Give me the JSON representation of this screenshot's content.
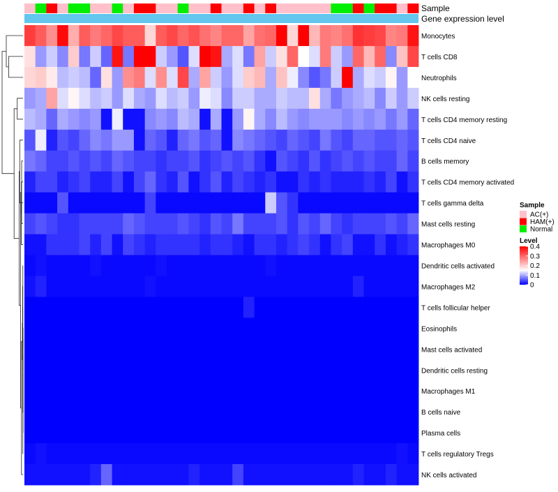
{
  "chart_data": {
    "type": "heatmap",
    "annotation_labels": {
      "sample": "Sample",
      "gene_expression": "Gene expression level"
    },
    "rows": [
      "Monocytes",
      "T cells CD8",
      "Neutrophils",
      "NK cells resting",
      "T cells CD4 memory resting",
      "T cells CD4 naive",
      "B cells memory",
      "T cells CD4 memory activated",
      "T cells gamma delta",
      "Mast cells resting",
      "Macrophages M0",
      "Dendritic cells activated",
      "Macrophages M2",
      "T cells follicular helper",
      "Eosinophils",
      "Mast cells activated",
      "Dendritic cells resting",
      "Macrophages M1",
      "B cells naive",
      "Plasma cells",
      "T cells regulatory  Tregs",
      "NK cells activated"
    ],
    "sample_groups": [
      "AC(+)",
      "Normal",
      "HAM(+)",
      "AC(+)",
      "Normal",
      "Normal",
      "AC(+)",
      "AC(+)",
      "Normal",
      "AC(+)",
      "HAM(+)",
      "HAM(+)",
      "AC(+)",
      "AC(+)",
      "Normal",
      "AC(+)",
      "AC(+)",
      "HAM(+)",
      "AC(+)",
      "AC(+)",
      "HAM(+)",
      "AC(+)",
      "HAM(+)",
      "AC(+)",
      "AC(+)",
      "AC(+)",
      "AC(+)",
      "AC(+)",
      "Normal",
      "Normal",
      "HAM(+)",
      "Normal",
      "HAM(+)",
      "HAM(+)",
      "AC(+)",
      "HAM(+)"
    ],
    "legend": {
      "sample_title": "Sample",
      "sample_entries": [
        {
          "label": "AC(+)",
          "color": "#ffc0cb"
        },
        {
          "label": "HAM(+)",
          "color": "#ff0000"
        },
        {
          "label": "Normal",
          "color": "#00ee00"
        }
      ],
      "level_title": "Level",
      "level_ticks": [
        "0.4",
        "0.3",
        "0.2",
        "0.1",
        "0"
      ],
      "level_range": [
        0,
        0.4
      ]
    },
    "color_scale": {
      "low": "#0000ff",
      "mid": "#ffffff",
      "high": "#ff0000",
      "mid_value": 0.15
    },
    "row_base_values": [
      0.31,
      0.15,
      0.2,
      0.12,
      0.08,
      0.05,
      0.04,
      0.025,
      0.005,
      0.04,
      0.025,
      0.007,
      0.004,
      0.001,
      0,
      0,
      0,
      0,
      0,
      0,
      0.003,
      0.01
    ],
    "values": [
      [
        0.34,
        0.31,
        0.26,
        0.39,
        0.23,
        0.31,
        0.28,
        0.3,
        0.33,
        0.31,
        0.31,
        0.19,
        0.31,
        0.33,
        0.3,
        0.32,
        0.29,
        0.27,
        0.3,
        0.3,
        0.24,
        0.29,
        0.3,
        0.4,
        0.19,
        0.4,
        0.22,
        0.28,
        0.27,
        0.29,
        0.35,
        0.34,
        0.33,
        0.27,
        0.28,
        0.38
      ],
      [
        0.18,
        0.09,
        0.12,
        0.08,
        0.2,
        0.07,
        0.12,
        0.06,
        0.38,
        0.07,
        0.4,
        0.4,
        0.12,
        0.09,
        0.05,
        0.13,
        0.4,
        0.38,
        0.1,
        0.13,
        0.07,
        0.24,
        0.12,
        0.18,
        0.3,
        0.15,
        0.13,
        0.28,
        0.12,
        0.09,
        0.3,
        0.22,
        0.3,
        0.08,
        0.21,
        0.33
      ],
      [
        0.19,
        0.2,
        0.17,
        0.11,
        0.12,
        0.11,
        0.06,
        0.18,
        0.09,
        0.26,
        0.28,
        0.13,
        0.26,
        0.13,
        0.33,
        0.1,
        0.24,
        0.12,
        0.09,
        0.13,
        0.2,
        0.22,
        0.1,
        0.21,
        0.14,
        0.08,
        0.05,
        0.07,
        0.12,
        0.4,
        0.1,
        0.13,
        0.12,
        0.16,
        0.09,
        0.15
      ],
      [
        0.09,
        0.1,
        0.24,
        0.13,
        0.16,
        0.13,
        0.11,
        0.12,
        0.09,
        0.13,
        0.1,
        0.09,
        0.13,
        0.11,
        0.12,
        0.09,
        0.14,
        0.13,
        0.08,
        0.12,
        0.12,
        0.1,
        0.1,
        0.12,
        0.11,
        0.11,
        0.18,
        0.1,
        0.07,
        0.09,
        0.1,
        0.11,
        0.08,
        0.12,
        0.09,
        0.12
      ],
      [
        0.11,
        0.1,
        0.06,
        0.1,
        0.09,
        0.08,
        0.09,
        0.01,
        0.14,
        0.01,
        0.01,
        0.08,
        0.09,
        0.08,
        0.11,
        0.1,
        0.01,
        0.1,
        0.01,
        0.09,
        0.16,
        0.1,
        0.08,
        0.11,
        0.09,
        0.08,
        0.09,
        0.09,
        0.09,
        0.08,
        0.09,
        0.08,
        0.09,
        0.07,
        0.09,
        0.06
      ],
      [
        0.05,
        0.14,
        0.02,
        0.05,
        0.04,
        0.06,
        0.08,
        0.07,
        0.09,
        0.09,
        0.01,
        0.06,
        0.05,
        0.02,
        0.06,
        0.07,
        0.05,
        0.06,
        0.01,
        0.08,
        0.07,
        0.06,
        0.05,
        0.04,
        0.06,
        0.05,
        0.04,
        0.07,
        0.05,
        0.04,
        0.06,
        0.06,
        0.05,
        0.05,
        0.06,
        0.05
      ],
      [
        0.07,
        0.06,
        0.04,
        0.04,
        0.05,
        0.04,
        0.05,
        0.04,
        0.06,
        0.05,
        0.04,
        0.04,
        0.03,
        0.04,
        0.04,
        0.05,
        0.03,
        0.04,
        0.05,
        0.04,
        0.05,
        0.03,
        0.01,
        0.05,
        0.04,
        0.03,
        0.05,
        0.03,
        0.04,
        0.05,
        0.04,
        0.05,
        0.04,
        0.04,
        0.06,
        0.04
      ],
      [
        0.02,
        0.04,
        0.04,
        0.02,
        0.03,
        0.04,
        0.02,
        0.02,
        0.04,
        0.01,
        0.04,
        0.06,
        0.03,
        0.02,
        0.05,
        0.01,
        0.03,
        0.05,
        0.02,
        0.04,
        0.03,
        0.02,
        0.03,
        0.01,
        0.01,
        0.03,
        0.02,
        0.03,
        0.02,
        0.02,
        0.02,
        0.03,
        0.02,
        0.04,
        0.01,
        0.03
      ],
      [
        0.005,
        0.005,
        0.005,
        0.05,
        0.005,
        0.005,
        0.005,
        0.005,
        0.005,
        0.005,
        0.005,
        0.04,
        0.005,
        0.005,
        0.005,
        0.005,
        0.005,
        0.005,
        0.005,
        0.005,
        0.005,
        0.005,
        0.12,
        0.05,
        0.03,
        0.005,
        0.005,
        0.005,
        0.005,
        0.005,
        0.005,
        0.005,
        0.005,
        0.005,
        0.005,
        0.005
      ],
      [
        0.04,
        0.05,
        0.04,
        0.03,
        0.03,
        0.04,
        0.04,
        0.04,
        0.04,
        0.06,
        0.05,
        0.04,
        0.04,
        0.04,
        0.05,
        0.04,
        0.03,
        0.05,
        0.04,
        0.07,
        0.04,
        0.04,
        0.04,
        0.05,
        0.03,
        0.05,
        0.04,
        0.06,
        0.04,
        0.03,
        0.04,
        0.04,
        0.04,
        0.05,
        0.04,
        0.06
      ],
      [
        0.01,
        0.01,
        0.03,
        0.03,
        0.03,
        0.04,
        0.02,
        0.04,
        0.01,
        0.04,
        0.03,
        0.02,
        0.03,
        0.03,
        0.03,
        0.03,
        0.02,
        0.03,
        0.03,
        0.02,
        0.01,
        0.03,
        0.03,
        0.02,
        0.03,
        0.04,
        0.03,
        0.01,
        0.03,
        0.04,
        0.01,
        0.01,
        0.03,
        0.01,
        0.02,
        0.03
      ],
      [
        0.005,
        0.01,
        0.005,
        0.005,
        0.005,
        0.005,
        0.01,
        0.005,
        0.005,
        0.005,
        0.005,
        0.005,
        0.01,
        0.005,
        0.005,
        0.005,
        0.005,
        0.005,
        0.005,
        0.005,
        0.005,
        0.005,
        0.01,
        0.005,
        0.005,
        0.005,
        0.005,
        0.005,
        0.005,
        0.005,
        0.005,
        0.005,
        0.005,
        0.005,
        0.005,
        0.005
      ],
      [
        0.01,
        0.02,
        0.005,
        0.005,
        0.005,
        0.005,
        0.005,
        0.005,
        0.005,
        0.005,
        0.005,
        0.01,
        0.005,
        0.005,
        0.005,
        0.005,
        0.005,
        0.005,
        0.005,
        0.005,
        0.005,
        0.005,
        0.005,
        0.005,
        0.005,
        0.005,
        0.005,
        0.005,
        0.005,
        0.005,
        0.02,
        0.005,
        0.005,
        0.005,
        0.005,
        0.005
      ],
      [
        0,
        0,
        0,
        0,
        0,
        0,
        0,
        0,
        0,
        0,
        0,
        0,
        0,
        0,
        0,
        0,
        0,
        0,
        0,
        0,
        0.02,
        0,
        0,
        0,
        0,
        0,
        0,
        0,
        0,
        0,
        0,
        0,
        0,
        0,
        0,
        0
      ],
      [
        0,
        0,
        0,
        0,
        0,
        0,
        0,
        0,
        0,
        0,
        0,
        0,
        0,
        0,
        0,
        0,
        0,
        0,
        0,
        0,
        0,
        0,
        0,
        0,
        0,
        0,
        0,
        0,
        0,
        0,
        0,
        0,
        0,
        0,
        0,
        0
      ],
      [
        0,
        0,
        0,
        0,
        0,
        0,
        0,
        0,
        0,
        0,
        0,
        0,
        0,
        0,
        0,
        0,
        0,
        0,
        0,
        0,
        0,
        0,
        0,
        0,
        0,
        0,
        0,
        0,
        0,
        0,
        0,
        0,
        0,
        0,
        0,
        0
      ],
      [
        0,
        0,
        0,
        0,
        0,
        0,
        0,
        0,
        0,
        0,
        0,
        0,
        0,
        0,
        0,
        0,
        0,
        0,
        0,
        0,
        0,
        0,
        0,
        0,
        0,
        0,
        0,
        0,
        0,
        0,
        0,
        0,
        0,
        0,
        0,
        0
      ],
      [
        0,
        0,
        0,
        0,
        0,
        0,
        0,
        0,
        0,
        0,
        0,
        0,
        0,
        0,
        0,
        0,
        0,
        0,
        0,
        0,
        0,
        0,
        0,
        0,
        0,
        0,
        0,
        0,
        0,
        0,
        0,
        0,
        0,
        0,
        0,
        0
      ],
      [
        0,
        0,
        0,
        0,
        0,
        0,
        0,
        0,
        0,
        0,
        0,
        0,
        0,
        0,
        0,
        0,
        0,
        0,
        0,
        0,
        0,
        0,
        0,
        0,
        0,
        0,
        0,
        0,
        0,
        0,
        0,
        0,
        0,
        0,
        0,
        0
      ],
      [
        0,
        0,
        0,
        0,
        0,
        0,
        0,
        0,
        0,
        0,
        0,
        0,
        0,
        0,
        0,
        0,
        0,
        0,
        0,
        0,
        0,
        0,
        0,
        0,
        0,
        0,
        0,
        0,
        0,
        0,
        0,
        0,
        0,
        0,
        0,
        0
      ],
      [
        0.005,
        0.01,
        0.005,
        0.005,
        0.005,
        0.005,
        0.005,
        0.005,
        0.005,
        0.005,
        0.005,
        0.005,
        0.005,
        0.005,
        0.005,
        0.005,
        0.005,
        0.005,
        0.005,
        0.005,
        0.005,
        0.005,
        0.005,
        0.005,
        0.005,
        0.005,
        0.005,
        0.005,
        0.005,
        0.005,
        0.005,
        0.005,
        0.005,
        0.005,
        0.01,
        0.005
      ],
      [
        0.01,
        0.01,
        0.01,
        0.01,
        0.01,
        0.01,
        0.02,
        0.06,
        0.01,
        0.01,
        0.01,
        0.01,
        0.01,
        0.01,
        0.01,
        0.02,
        0.01,
        0.01,
        0.01,
        0.04,
        0.01,
        0.01,
        0.01,
        0.01,
        0.01,
        0.01,
        0.01,
        0.01,
        0.01,
        0.01,
        0.02,
        0.01,
        0.01,
        0.02,
        0.01,
        0.01
      ]
    ]
  }
}
